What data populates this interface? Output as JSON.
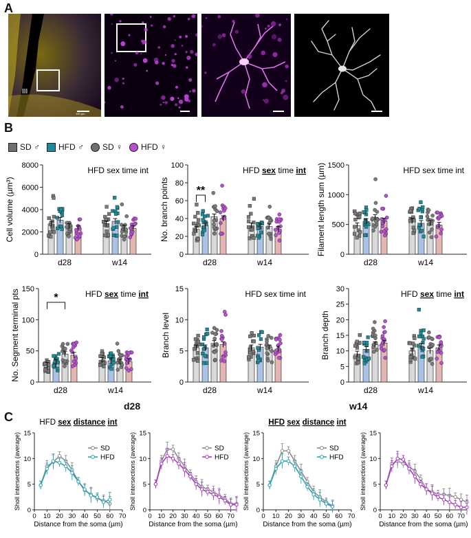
{
  "panel_labels": {
    "a": "A",
    "b": "B",
    "c": "C"
  },
  "panel_a": {
    "ventricle_label": "III",
    "scale_text": "100 µm"
  },
  "legend": [
    {
      "label": "SD ♂",
      "shape": "square",
      "color": "#6f6f6f"
    },
    {
      "label": "HFD ♂",
      "shape": "square",
      "color": "#1f8a9a"
    },
    {
      "label": "SD ♀",
      "shape": "circle",
      "color": "#6f6f6f"
    },
    {
      "label": "HFD ♀",
      "shape": "circle",
      "color": "#b84fd1"
    }
  ],
  "colors": {
    "bar_sd_male": "#d9d9d9",
    "bar_hfd_male": "#a9c3e6",
    "bar_sd_female": "#d9d9d9",
    "bar_hfd_female": "#e3b6b3",
    "dot_sd_male": "#7a7a7a",
    "dot_hfd_male": "#1f8a9a",
    "dot_sd_female": "#7a7a7a",
    "dot_hfd_female": "#b84fd1",
    "line_sd": "#8a8a8a",
    "line_hfd_male": "#2aa3b1",
    "line_hfd_female": "#a63bc0"
  },
  "group_labels": [
    "d28",
    "w14"
  ],
  "c_titles": {
    "left": "d28",
    "right": "w14"
  },
  "chart_data": [
    {
      "type": "bar",
      "ylabel": "Cell volume (µm³)",
      "stat": [
        "HFD sex time int",
        ""
      ],
      "ylim": [
        0,
        8000
      ],
      "yticks": [
        0,
        2000,
        4000,
        6000,
        8000
      ],
      "categories": [
        "d28",
        "w14"
      ],
      "sig": null,
      "series": [
        {
          "name": "SD ♂",
          "values": [
            2700,
            2750
          ]
        },
        {
          "name": "HFD ♂",
          "values": [
            3050,
            2950
          ]
        },
        {
          "name": "SD ♀",
          "values": [
            2500,
            2350
          ]
        },
        {
          "name": "HFD ♀",
          "values": [
            2300,
            2300
          ]
        }
      ]
    },
    {
      "type": "bar",
      "ylabel": "No. branch points",
      "stat": [
        "HFD ",
        "sex",
        " time ",
        "int"
      ],
      "ylim": [
        0,
        100
      ],
      "yticks": [
        0,
        20,
        40,
        60,
        80,
        100
      ],
      "categories": [
        "d28",
        "w14"
      ],
      "sig": {
        "label": "**",
        "from": 0,
        "to": 1
      },
      "series": [
        {
          "name": "SD ♂",
          "values": [
            28,
            32
          ]
        },
        {
          "name": "HFD ♂",
          "values": [
            32,
            31
          ]
        },
        {
          "name": "SD ♀",
          "values": [
            42,
            31
          ]
        },
        {
          "name": "HFD ♀",
          "values": [
            40,
            28
          ]
        }
      ]
    },
    {
      "type": "bar",
      "ylabel": "Filament length sum (µm)",
      "stat": [
        "HFD sex time int",
        ""
      ],
      "ylim": [
        0,
        1500
      ],
      "yticks": [
        0,
        500,
        1000,
        1500
      ],
      "categories": [
        "d28",
        "w14"
      ],
      "sig": null,
      "series": [
        {
          "name": "SD ♂",
          "values": [
            480,
            560
          ]
        },
        {
          "name": "HFD ♂",
          "values": [
            550,
            520
          ]
        },
        {
          "name": "SD ♀",
          "values": [
            620,
            520
          ]
        },
        {
          "name": "HFD ♀",
          "values": [
            560,
            490
          ]
        }
      ]
    },
    {
      "type": "bar",
      "ylabel": "No. Segment terminal pts",
      "stat": [
        "HFD ",
        "sex",
        " time ",
        "int"
      ],
      "ylim": [
        0,
        150
      ],
      "yticks": [
        0,
        50,
        100,
        150
      ],
      "categories": [
        "d28",
        "w14"
      ],
      "sig": {
        "label": "*",
        "from": 0,
        "to": 2
      },
      "series": [
        {
          "name": "SD ♂",
          "values": [
            27,
            35
          ]
        },
        {
          "name": "HFD ♂",
          "values": [
            32,
            34
          ]
        },
        {
          "name": "SD ♀",
          "values": [
            45,
            32
          ]
        },
        {
          "name": "HFD ♀",
          "values": [
            43,
            33
          ]
        }
      ]
    },
    {
      "type": "bar",
      "ylabel": "Branch level",
      "stat": [
        "HFD sex time int",
        ""
      ],
      "ylim": [
        0,
        15
      ],
      "yticks": [
        0,
        5,
        10,
        15
      ],
      "categories": [
        "d28",
        "w14"
      ],
      "sig": null,
      "series": [
        {
          "name": "SD ♂",
          "values": [
            5.5,
            5.5
          ]
        },
        {
          "name": "HFD ♂",
          "values": [
            5.5,
            5.6
          ]
        },
        {
          "name": "SD ♀",
          "values": [
            6.2,
            5.5
          ]
        },
        {
          "name": "HFD ♀",
          "values": [
            6.0,
            5.3
          ]
        }
      ]
    },
    {
      "type": "bar",
      "ylabel": "Branch depth",
      "stat": [
        "HFD ",
        "sex",
        " time ",
        "int"
      ],
      "ylim": [
        0,
        30
      ],
      "yticks": [
        0,
        5,
        10,
        15,
        20,
        25,
        30
      ],
      "categories": [
        "d28",
        "w14"
      ],
      "sig": null,
      "series": [
        {
          "name": "SD ♂",
          "values": [
            9,
            10
          ]
        },
        {
          "name": "HFD ♂",
          "values": [
            10.5,
            11.5
          ]
        },
        {
          "name": "SD ♀",
          "values": [
            12,
            10
          ]
        },
        {
          "name": "HFD ♀",
          "values": [
            12.5,
            11
          ]
        }
      ]
    },
    {
      "type": "line",
      "stat": [
        "HFD ",
        "sex",
        " ",
        "distance",
        " ",
        "int"
      ],
      "xlabel": "Distance from the soma (µm)",
      "ylabel": "Sholl intersections (average)",
      "xlim": [
        0,
        70
      ],
      "ylim": [
        0,
        15
      ],
      "xticks": [
        0,
        10,
        20,
        30,
        40,
        50,
        60,
        70
      ],
      "yticks": [
        0,
        5,
        10,
        15
      ],
      "legend_loc": "top-right",
      "x": [
        5,
        10,
        15,
        20,
        25,
        30,
        35,
        40,
        45,
        50,
        55,
        60
      ],
      "series": [
        {
          "name": "SD",
          "values": [
            4.8,
            8.5,
            9.3,
            10.5,
            9.5,
            7.8,
            5.5,
            3.8,
            3.0,
            2.2,
            1.8,
            1.2
          ],
          "color_key": "line_sd"
        },
        {
          "name": "HFD",
          "values": [
            4.8,
            8.0,
            9.5,
            9.2,
            8.5,
            7.2,
            5.5,
            4.0,
            2.8,
            2.5,
            1.5,
            2.0
          ],
          "color_key": "line_hfd_male"
        }
      ]
    },
    {
      "type": "line",
      "stat": [],
      "xlabel": "Distance from the soma (µm)",
      "ylabel": "Sholl intersections (average)",
      "xlim": [
        0,
        75
      ],
      "ylim": [
        0,
        15
      ],
      "xticks": [
        0,
        10,
        20,
        30,
        40,
        50,
        60,
        70
      ],
      "yticks": [
        0,
        5,
        10,
        15
      ],
      "legend_loc": "top-right",
      "x": [
        5,
        10,
        15,
        20,
        25,
        30,
        35,
        40,
        45,
        50,
        55,
        60,
        65,
        70,
        75
      ],
      "series": [
        {
          "name": "SD",
          "values": [
            5.0,
            9.5,
            11.8,
            11.8,
            10.0,
            8.5,
            7.0,
            5.5,
            4.5,
            4.0,
            3.5,
            2.8,
            2.2,
            1.2,
            1.2
          ],
          "color_key": "line_sd"
        },
        {
          "name": "HFD",
          "values": [
            5.0,
            9.0,
            10.5,
            10.0,
            9.0,
            7.8,
            6.5,
            5.0,
            4.0,
            3.5,
            3.0,
            2.5,
            1.8,
            1.0,
            1.0
          ],
          "color_key": "line_hfd_female"
        }
      ]
    },
    {
      "type": "line",
      "stat": [
        "HFD",
        " ",
        "sex",
        " ",
        "distance",
        " ",
        "int"
      ],
      "xlabel": "Distance from the soma (µm)",
      "ylabel": "Sholl intersections (average)",
      "xlim": [
        0,
        70
      ],
      "ylim": [
        0,
        15
      ],
      "xticks": [
        0,
        10,
        20,
        30,
        40,
        50,
        60,
        70
      ],
      "yticks": [
        0,
        5,
        10,
        15
      ],
      "legend_loc": "top-right",
      "x": [
        5,
        10,
        15,
        20,
        25,
        30,
        35,
        40,
        45,
        50,
        55
      ],
      "series": [
        {
          "name": "SD",
          "values": [
            4.8,
            8.5,
            11.5,
            11.5,
            9.5,
            7.5,
            5.5,
            3.5,
            2.5,
            1.5,
            0.8
          ],
          "color_key": "line_sd"
        },
        {
          "name": "HFD",
          "values": [
            4.8,
            8.0,
            9.5,
            9.5,
            8.5,
            6.5,
            4.5,
            3.0,
            2.0,
            1.2,
            0.6
          ],
          "color_key": "line_hfd_male"
        }
      ]
    },
    {
      "type": "line",
      "stat": [],
      "xlabel": "Distance from the soma (µm)",
      "ylabel": "Sholl intersections (average)",
      "xlim": [
        0,
        75
      ],
      "ylim": [
        0,
        15
      ],
      "xticks": [
        0,
        10,
        20,
        30,
        40,
        50,
        60,
        70
      ],
      "yticks": [
        0,
        5,
        10,
        15
      ],
      "legend_loc": "none",
      "x": [
        5,
        10,
        15,
        20,
        25,
        30,
        35,
        40,
        45,
        50,
        55,
        60,
        65,
        70,
        75
      ],
      "series": [
        {
          "name": "SD",
          "values": [
            4.8,
            9.0,
            9.5,
            9.0,
            8.5,
            7.5,
            6.0,
            4.0,
            3.5,
            3.0,
            3.0,
            2.8,
            2.5,
            2.0,
            1.5
          ],
          "color_key": "line_sd"
        },
        {
          "name": "HFD",
          "values": [
            4.8,
            8.5,
            10.0,
            9.8,
            8.0,
            6.5,
            5.0,
            4.0,
            3.2,
            2.5,
            2.0,
            1.5,
            1.0,
            0.5,
            0.5
          ],
          "color_key": "line_hfd_female"
        }
      ]
    }
  ]
}
